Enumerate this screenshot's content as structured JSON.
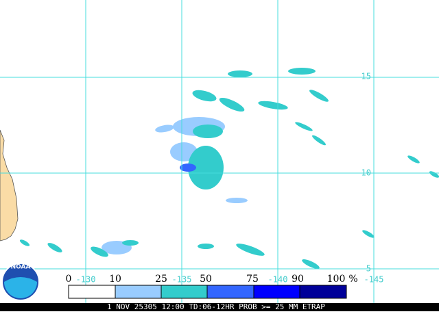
{
  "map": {
    "lat_labels": [
      "15",
      "10",
      "5"
    ],
    "lon_labels": [
      "-130",
      "-135",
      "-140",
      "-145"
    ]
  },
  "legend": {
    "labels": [
      "0",
      "10",
      "25",
      "50",
      "75",
      "90",
      "100"
    ],
    "unit": "%"
  },
  "logo": "NOAA",
  "caption": "1 NOV 25305 12:00 TD:06-12HR PROB >= 25 MM ETRAP"
}
